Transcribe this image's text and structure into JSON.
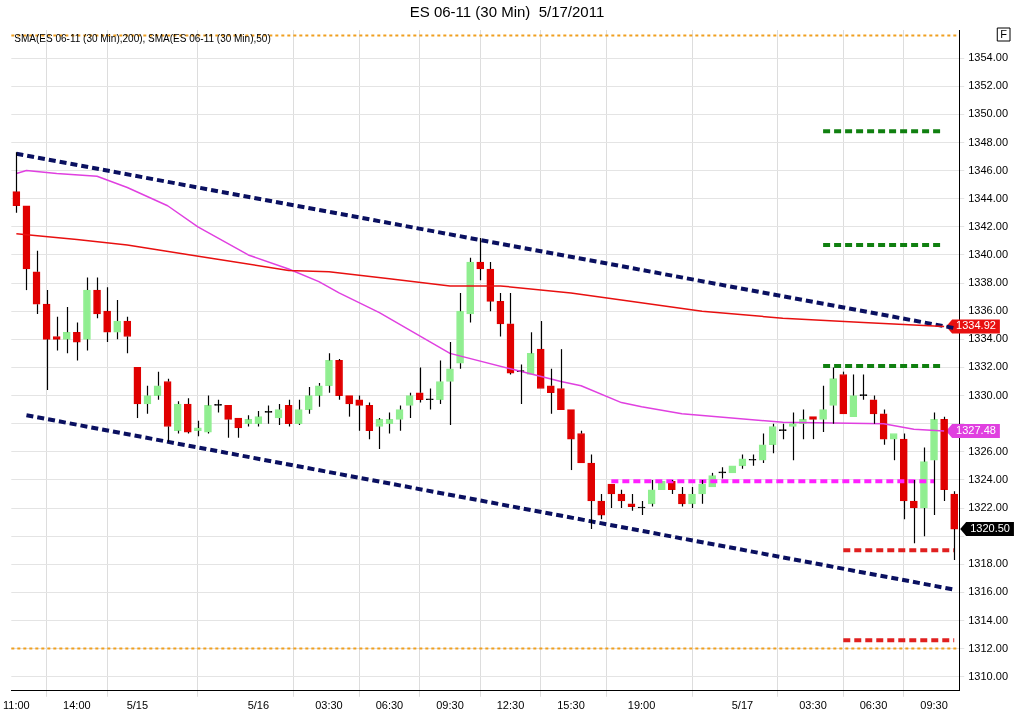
{
  "chart_data": {
    "type": "candlestick",
    "title": "ES 06-11 (30 Min)  5/17/2011",
    "subtitle": "SMA(ES 06-11 (30 Min),200), SMA(ES 06-11 (30 Min),50)",
    "categories": [
      "11:00",
      null,
      null,
      null,
      null,
      null,
      "14:00",
      null,
      null,
      null,
      null,
      null,
      "5/15",
      null,
      null,
      null,
      null,
      null,
      null,
      null,
      null,
      null,
      null,
      null,
      "5/16",
      null,
      null,
      null,
      null,
      null,
      null,
      "03:30",
      null,
      null,
      null,
      null,
      null,
      "06:30",
      null,
      null,
      null,
      null,
      null,
      "09:30",
      null,
      null,
      null,
      null,
      null,
      "12:30",
      null,
      null,
      null,
      null,
      null,
      "15:30",
      null,
      null,
      null,
      null,
      null,
      null,
      "19:00",
      null,
      null,
      null,
      null,
      null,
      null,
      null,
      null,
      null,
      "5/17",
      null,
      null,
      null,
      null,
      null,
      null,
      "03:30",
      null,
      null,
      null,
      null,
      null,
      "06:30",
      null,
      null,
      null,
      null,
      null,
      "09:30",
      null,
      null
    ],
    "ohlc": [
      [
        1344.5,
        1347.3,
        1343.0,
        1343.5
      ],
      [
        1343.5,
        1343.5,
        1337.5,
        1339.0
      ],
      [
        1338.8,
        1340.3,
        1335.8,
        1336.5
      ],
      [
        1336.5,
        1337.5,
        1330.4,
        1334.0
      ],
      [
        1334.2,
        1335.6,
        1333.2,
        1334.0
      ],
      [
        1334.0,
        1336.3,
        1333.0,
        1334.5
      ],
      [
        1334.5,
        1335.2,
        1332.5,
        1333.8
      ],
      [
        1334.0,
        1338.4,
        1333.2,
        1337.5
      ],
      [
        1337.5,
        1338.4,
        1335.5,
        1335.8
      ],
      [
        1336.0,
        1337.7,
        1333.8,
        1334.5
      ],
      [
        1334.5,
        1336.8,
        1334.0,
        1335.3
      ],
      [
        1335.3,
        1335.6,
        1333.0,
        1334.2
      ],
      [
        1332.0,
        1332.0,
        1328.4,
        1329.4
      ],
      [
        1329.4,
        1330.7,
        1328.7,
        1330.0
      ],
      [
        1330.0,
        1331.7,
        1329.7,
        1330.7
      ],
      [
        1331.0,
        1331.2,
        1326.7,
        1327.8
      ],
      [
        1327.5,
        1329.6,
        1327.3,
        1329.4
      ],
      [
        1329.4,
        1329.8,
        1327.3,
        1327.4
      ],
      [
        1327.5,
        1328.2,
        1327.1,
        1327.7
      ],
      [
        1327.4,
        1330.0,
        1327.3,
        1329.3
      ],
      [
        1329.3,
        1329.7,
        1328.8,
        1329.3
      ],
      [
        1329.3,
        1329.3,
        1327.0,
        1328.3
      ],
      [
        1328.4,
        1328.4,
        1327.0,
        1327.7
      ],
      [
        1328.0,
        1328.6,
        1327.8,
        1328.3
      ],
      [
        1328.0,
        1328.9,
        1327.8,
        1328.5
      ],
      [
        1328.8,
        1329.3,
        1328.0,
        1328.8
      ],
      [
        1328.4,
        1329.4,
        1327.9,
        1329.0
      ],
      [
        1329.3,
        1329.7,
        1327.8,
        1328.0
      ],
      [
        1328.0,
        1329.7,
        1327.9,
        1329.0
      ],
      [
        1329.0,
        1330.6,
        1328.7,
        1330.0
      ],
      [
        1330.0,
        1330.9,
        1329.2,
        1330.7
      ],
      [
        1330.7,
        1333.0,
        1330.2,
        1332.5
      ],
      [
        1332.5,
        1332.6,
        1329.7,
        1330.0
      ],
      [
        1330.0,
        1330.0,
        1328.5,
        1329.4
      ],
      [
        1329.7,
        1330.0,
        1327.5,
        1329.3
      ],
      [
        1329.3,
        1329.5,
        1326.9,
        1327.5
      ],
      [
        1327.8,
        1328.4,
        1326.2,
        1328.3
      ],
      [
        1328.0,
        1328.8,
        1327.3,
        1328.3
      ],
      [
        1328.3,
        1329.3,
        1327.5,
        1329.0
      ],
      [
        1329.3,
        1330.2,
        1328.4,
        1330.0
      ],
      [
        1330.2,
        1332.0,
        1329.5,
        1329.7
      ],
      [
        1329.7,
        1330.5,
        1329.0,
        1329.7
      ],
      [
        1329.7,
        1332.5,
        1329.4,
        1331.0
      ],
      [
        1331.0,
        1333.8,
        1327.9,
        1331.9
      ],
      [
        1332.3,
        1337.3,
        1331.9,
        1336.0
      ],
      [
        1335.8,
        1339.8,
        1335.2,
        1339.5
      ],
      [
        1339.5,
        1341.2,
        1338.2,
        1339.0
      ],
      [
        1339.0,
        1339.5,
        1336.0,
        1336.7
      ],
      [
        1336.7,
        1337.3,
        1334.2,
        1335.1
      ],
      [
        1335.1,
        1337.3,
        1331.5,
        1331.6
      ],
      [
        1331.7,
        1332.2,
        1329.4,
        1331.7
      ],
      [
        1331.5,
        1334.5,
        1331.5,
        1333.0
      ],
      [
        1333.3,
        1335.3,
        1330.5,
        1330.5
      ],
      [
        1330.7,
        1331.9,
        1328.7,
        1330.2
      ],
      [
        1330.5,
        1333.3,
        1329.0,
        1329.0
      ],
      [
        1329.0,
        1329.0,
        1324.7,
        1326.9
      ],
      [
        1327.3,
        1327.5,
        1325.2,
        1325.2
      ],
      [
        1325.2,
        1325.8,
        1320.5,
        1322.5
      ],
      [
        1322.5,
        1323.0,
        1321.2,
        1321.5
      ],
      [
        1323.7,
        1323.7,
        1322.0,
        1323.0
      ],
      [
        1323.0,
        1323.3,
        1322.0,
        1322.5
      ],
      [
        1322.3,
        1323.0,
        1321.8,
        1322.1
      ],
      [
        1322.0,
        1322.5,
        1321.5,
        1322.0
      ],
      [
        1322.3,
        1324.0,
        1322.1,
        1323.3
      ],
      [
        1323.3,
        1323.9,
        1323.3,
        1323.9
      ],
      [
        1323.9,
        1324.0,
        1323.0,
        1323.3
      ],
      [
        1323.0,
        1323.5,
        1322.1,
        1322.3
      ],
      [
        1322.3,
        1323.5,
        1322.0,
        1323.0
      ],
      [
        1323.0,
        1324.0,
        1322.3,
        1323.7
      ],
      [
        1323.5,
        1324.5,
        1323.5,
        1324.3
      ],
      [
        1324.5,
        1324.9,
        1324.1,
        1324.5
      ],
      [
        1324.5,
        1325.0,
        1324.5,
        1325.0
      ],
      [
        1325.0,
        1325.8,
        1324.8,
        1325.5
      ],
      [
        1325.4,
        1325.8,
        1325.0,
        1325.4
      ],
      [
        1325.4,
        1327.3,
        1325.2,
        1326.5
      ],
      [
        1326.5,
        1328.0,
        1325.9,
        1327.8
      ],
      [
        1327.5,
        1328.0,
        1326.9,
        1327.5
      ],
      [
        1327.8,
        1328.8,
        1325.4,
        1328.0
      ],
      [
        1328.0,
        1329.0,
        1326.9,
        1328.3
      ],
      [
        1328.5,
        1328.5,
        1326.9,
        1328.3
      ],
      [
        1328.3,
        1330.7,
        1327.4,
        1329.0
      ],
      [
        1329.3,
        1332.0,
        1328.0,
        1331.2
      ],
      [
        1331.5,
        1331.7,
        1328.7,
        1328.7
      ],
      [
        1328.5,
        1331.5,
        1328.5,
        1330.0
      ],
      [
        1330.0,
        1331.5,
        1329.7,
        1330.0
      ],
      [
        1329.7,
        1330.0,
        1328.0,
        1328.7
      ],
      [
        1328.7,
        1329.0,
        1326.5,
        1326.9
      ],
      [
        1326.9,
        1327.3,
        1325.4,
        1327.3
      ],
      [
        1326.9,
        1327.3,
        1321.2,
        1322.5
      ],
      [
        1322.5,
        1324.0,
        1319.5,
        1322.0
      ],
      [
        1322.0,
        1326.3,
        1320.0,
        1325.3
      ],
      [
        1325.4,
        1328.8,
        1321.5,
        1328.3
      ],
      [
        1328.3,
        1328.5,
        1322.5,
        1323.3
      ],
      [
        1323.0,
        1323.2,
        1318.3,
        1320.5
      ]
    ],
    "colors": [
      "#e00000",
      "#e00000",
      "#e00000",
      "#e00000",
      "#e00000",
      "#90ee90",
      "#e00000",
      "#90ee90",
      "#e00000",
      "#e00000",
      "#90ee90",
      "#e00000",
      "#e00000",
      "#90ee90",
      "#90ee90",
      "#e00000",
      "#90ee90",
      "#e00000",
      "#90ee90",
      "#90ee90",
      "#000000",
      "#e00000",
      "#e00000",
      "#90ee90",
      "#90ee90",
      "#000000",
      "#90ee90",
      "#e00000",
      "#90ee90",
      "#90ee90",
      "#90ee90",
      "#90ee90",
      "#e00000",
      "#e00000",
      "#e00000",
      "#e00000",
      "#90ee90",
      "#90ee90",
      "#90ee90",
      "#90ee90",
      "#e00000",
      "#000000",
      "#90ee90",
      "#90ee90",
      "#90ee90",
      "#90ee90",
      "#e00000",
      "#e00000",
      "#e00000",
      "#e00000",
      "#000000",
      "#90ee90",
      "#e00000",
      "#e00000",
      "#e00000",
      "#e00000",
      "#e00000",
      "#e00000",
      "#e00000",
      "#e00000",
      "#e00000",
      "#e00000",
      "#000000",
      "#90ee90",
      "#90ee90",
      "#e00000",
      "#e00000",
      "#90ee90",
      "#90ee90",
      "#90ee90",
      "#000000",
      "#90ee90",
      "#90ee90",
      "#000000",
      "#90ee90",
      "#90ee90",
      "#000000",
      "#90ee90",
      "#90ee90",
      "#e00000",
      "#90ee90",
      "#90ee90",
      "#e00000",
      "#90ee90",
      "#000000",
      "#e00000",
      "#e00000",
      "#90ee90",
      "#e00000",
      "#e00000",
      "#90ee90",
      "#90ee90",
      "#e00000",
      "#e00000"
    ],
    "value_labels": [
      null,
      null,
      null,
      null,
      null,
      null,
      null,
      null,
      null,
      null,
      null,
      null,
      null,
      null,
      null,
      null,
      null,
      null,
      null,
      null,
      null,
      null,
      null,
      null,
      null,
      null,
      null,
      null,
      null,
      null,
      null,
      null,
      null,
      null,
      null,
      null,
      null,
      null,
      null,
      null,
      null,
      null,
      null,
      null,
      null,
      null,
      null,
      null,
      null,
      null,
      null,
      null,
      null,
      null,
      null,
      null,
      null,
      null,
      null,
      null,
      null,
      null,
      null,
      null,
      null,
      null,
      null,
      null,
      null,
      null,
      null,
      null,
      null,
      null,
      null,
      null,
      null,
      null,
      null,
      null,
      null,
      null,
      null,
      null,
      null,
      null,
      null,
      null,
      null,
      null,
      null,
      null,
      null,
      "1320.50"
    ],
    "series": [
      {
        "type": "line",
        "color": "#e81010",
        "line_style": "solid",
        "values": [
          1341.5,
          null,
          null,
          null,
          null,
          null,
          1341.1,
          null,
          null,
          null,
          null,
          1340.7,
          null,
          null,
          null,
          null,
          null,
          null,
          null,
          1339.8,
          null,
          null,
          null,
          null,
          null,
          null,
          null,
          1338.9,
          null,
          null,
          null,
          1338.8,
          null,
          null,
          null,
          null,
          null,
          1338.3,
          null,
          null,
          null,
          null,
          null,
          1337.8,
          null,
          null,
          null,
          null,
          1337.8,
          null,
          null,
          null,
          null,
          null,
          null,
          1337.3,
          null,
          null,
          null,
          null,
          1336.8,
          null,
          null,
          null,
          null,
          null,
          null,
          null,
          1336.0,
          null,
          null,
          null,
          null,
          null,
          null,
          null,
          1335.5,
          null,
          null,
          null,
          null,
          null,
          null,
          null,
          1335.2,
          null,
          null,
          null,
          null,
          null,
          null,
          null,
          1334.92,
          null
        ],
        "value_labels": [
          null,
          null,
          null,
          null,
          null,
          null,
          null,
          null,
          null,
          null,
          null,
          null,
          null,
          null,
          null,
          null,
          null,
          null,
          null,
          null,
          null,
          null,
          null,
          null,
          null,
          null,
          null,
          null,
          null,
          null,
          null,
          null,
          null,
          null,
          null,
          null,
          null,
          null,
          null,
          null,
          null,
          null,
          null,
          null,
          null,
          null,
          null,
          null,
          null,
          null,
          null,
          null,
          null,
          null,
          null,
          null,
          null,
          null,
          null,
          null,
          null,
          null,
          null,
          null,
          null,
          null,
          null,
          null,
          null,
          null,
          null,
          null,
          null,
          null,
          null,
          null,
          null,
          null,
          null,
          null,
          null,
          null,
          null,
          null,
          null,
          null,
          null,
          null,
          null,
          null,
          null,
          null,
          "1334.92",
          null
        ]
      },
      {
        "type": "line",
        "color": "#e040e0",
        "line_style": "solid",
        "values": [
          1345.8,
          1346.0,
          null,
          null,
          1345.8,
          null,
          null,
          null,
          1345.6,
          null,
          null,
          1344.8,
          null,
          null,
          null,
          1343.5,
          null,
          null,
          1342.0,
          null,
          null,
          null,
          null,
          1340.0,
          null,
          null,
          null,
          1339.0,
          null,
          null,
          1338.1,
          null,
          1337.3,
          null,
          null,
          null,
          1335.9,
          null,
          null,
          null,
          null,
          null,
          null,
          1333.0,
          null,
          null,
          null,
          null,
          null,
          1331.9,
          null,
          null,
          null,
          null,
          1331.0,
          null,
          1330.7,
          null,
          null,
          null,
          1329.5,
          null,
          1329.2,
          null,
          null,
          null,
          1328.7,
          null,
          null,
          null,
          null,
          null,
          null,
          null,
          null,
          null,
          1328.1,
          null,
          null,
          null,
          null,
          null,
          null,
          null,
          null,
          null,
          1328.0,
          null,
          null,
          1327.6,
          null,
          null,
          1327.48,
          null
        ],
        "value_labels": [
          null,
          null,
          null,
          null,
          null,
          null,
          null,
          null,
          null,
          null,
          null,
          null,
          null,
          null,
          null,
          null,
          null,
          null,
          null,
          null,
          null,
          null,
          null,
          null,
          null,
          null,
          null,
          null,
          null,
          null,
          null,
          null,
          null,
          null,
          null,
          null,
          null,
          null,
          null,
          null,
          null,
          null,
          null,
          null,
          null,
          null,
          null,
          null,
          null,
          null,
          null,
          null,
          null,
          null,
          null,
          null,
          null,
          null,
          null,
          null,
          null,
          null,
          null,
          null,
          null,
          null,
          null,
          null,
          null,
          null,
          null,
          null,
          null,
          null,
          null,
          null,
          null,
          null,
          null,
          null,
          null,
          null,
          null,
          null,
          null,
          null,
          null,
          null,
          null,
          null,
          null,
          null,
          "1327.48",
          null
        ]
      },
      {
        "type": "line",
        "color": "#0a1060",
        "line_style": "dashed",
        "values": [
          1347.2,
          null,
          null,
          null,
          null,
          null,
          null,
          null,
          null,
          null,
          null,
          null,
          null,
          null,
          null,
          null,
          null,
          null,
          null,
          null,
          null,
          null,
          null,
          null,
          null,
          null,
          null,
          null,
          null,
          null,
          null,
          null,
          null,
          null,
          null,
          null,
          null,
          null,
          null,
          null,
          null,
          null,
          null,
          null,
          null,
          null,
          null,
          null,
          null,
          null,
          null,
          null,
          null,
          null,
          null,
          null,
          null,
          null,
          null,
          null,
          null,
          null,
          null,
          null,
          null,
          null,
          null,
          null,
          null,
          null,
          null,
          null,
          null,
          null,
          null,
          null,
          null,
          null,
          null,
          null,
          null,
          null,
          null,
          null,
          null,
          null,
          null,
          null,
          null,
          null,
          null,
          null,
          null,
          1334.8
        ]
      },
      {
        "type": "line",
        "color": "#0a1060",
        "line_style": "dashed",
        "values": [
          null,
          1328.6,
          null,
          null,
          null,
          null,
          null,
          null,
          null,
          null,
          null,
          null,
          null,
          null,
          null,
          null,
          null,
          null,
          null,
          null,
          null,
          null,
          null,
          null,
          null,
          null,
          null,
          null,
          null,
          null,
          null,
          null,
          null,
          null,
          null,
          null,
          null,
          null,
          null,
          null,
          null,
          null,
          null,
          null,
          null,
          null,
          null,
          null,
          null,
          null,
          null,
          null,
          null,
          null,
          null,
          null,
          null,
          null,
          null,
          null,
          null,
          null,
          null,
          null,
          null,
          null,
          null,
          null,
          null,
          null,
          null,
          null,
          null,
          null,
          null,
          null,
          null,
          null,
          null,
          null,
          null,
          null,
          null,
          null,
          null,
          null,
          null,
          null,
          null,
          null,
          null,
          null,
          null,
          1316.2
        ]
      },
      {
        "type": "line",
        "color": "#108010",
        "line_style": "dashed",
        "values": [
          null,
          null,
          null,
          null,
          null,
          null,
          null,
          null,
          null,
          null,
          null,
          null,
          null,
          null,
          null,
          null,
          null,
          null,
          null,
          null,
          null,
          null,
          null,
          null,
          null,
          null,
          null,
          null,
          null,
          null,
          null,
          null,
          null,
          null,
          null,
          null,
          null,
          null,
          null,
          null,
          null,
          null,
          null,
          null,
          null,
          null,
          null,
          null,
          null,
          null,
          null,
          null,
          null,
          null,
          null,
          null,
          null,
          null,
          null,
          null,
          null,
          null,
          null,
          null,
          null,
          null,
          null,
          null,
          null,
          null,
          null,
          null,
          null,
          null,
          null,
          null,
          null,
          null,
          null,
          null,
          1348.8,
          null,
          null,
          null,
          null,
          null,
          null,
          null,
          null,
          null,
          null,
          null,
          1348.8,
          null
        ]
      },
      {
        "type": "line",
        "color": "#108010",
        "line_style": "dashed",
        "values": [
          null,
          null,
          null,
          null,
          null,
          null,
          null,
          null,
          null,
          null,
          null,
          null,
          null,
          null,
          null,
          null,
          null,
          null,
          null,
          null,
          null,
          null,
          null,
          null,
          null,
          null,
          null,
          null,
          null,
          null,
          null,
          null,
          null,
          null,
          null,
          null,
          null,
          null,
          null,
          null,
          null,
          null,
          null,
          null,
          null,
          null,
          null,
          null,
          null,
          null,
          null,
          null,
          null,
          null,
          null,
          null,
          null,
          null,
          null,
          null,
          null,
          null,
          null,
          null,
          null,
          null,
          null,
          null,
          null,
          null,
          null,
          null,
          null,
          null,
          null,
          null,
          null,
          null,
          null,
          null,
          1340.7,
          null,
          null,
          null,
          null,
          null,
          null,
          null,
          null,
          null,
          null,
          null,
          1340.7,
          null
        ]
      },
      {
        "type": "line",
        "color": "#108010",
        "line_style": "dashed",
        "values": [
          null,
          null,
          null,
          null,
          null,
          null,
          null,
          null,
          null,
          null,
          null,
          null,
          null,
          null,
          null,
          null,
          null,
          null,
          null,
          null,
          null,
          null,
          null,
          null,
          null,
          null,
          null,
          null,
          null,
          null,
          null,
          null,
          null,
          null,
          null,
          null,
          null,
          null,
          null,
          null,
          null,
          null,
          null,
          null,
          null,
          null,
          null,
          null,
          null,
          null,
          null,
          null,
          null,
          null,
          null,
          null,
          null,
          null,
          null,
          null,
          null,
          null,
          null,
          null,
          null,
          null,
          null,
          null,
          null,
          null,
          null,
          null,
          null,
          null,
          null,
          null,
          null,
          null,
          null,
          null,
          1332.1,
          null,
          null,
          null,
          null,
          null,
          null,
          null,
          null,
          null,
          null,
          null,
          1332.1,
          null
        ]
      },
      {
        "type": "line",
        "color": "#ff20ff",
        "line_style": "dashed",
        "values": [
          null,
          null,
          null,
          null,
          null,
          null,
          null,
          null,
          null,
          null,
          null,
          null,
          null,
          null,
          null,
          null,
          null,
          null,
          null,
          null,
          null,
          null,
          null,
          null,
          null,
          null,
          null,
          null,
          null,
          null,
          null,
          null,
          null,
          null,
          null,
          null,
          null,
          null,
          null,
          null,
          null,
          null,
          null,
          null,
          null,
          null,
          null,
          null,
          null,
          null,
          null,
          null,
          null,
          null,
          null,
          null,
          null,
          null,
          null,
          1323.9,
          null,
          null,
          null,
          null,
          null,
          null,
          null,
          null,
          null,
          null,
          null,
          null,
          null,
          null,
          null,
          null,
          null,
          null,
          null,
          null,
          null,
          null,
          null,
          null,
          null,
          null,
          null,
          null,
          null,
          null,
          null,
          1323.9,
          null,
          null
        ]
      },
      {
        "type": "line",
        "color": "#e02020",
        "line_style": "dashed",
        "values": [
          null,
          null,
          null,
          null,
          null,
          null,
          null,
          null,
          null,
          null,
          null,
          null,
          null,
          null,
          null,
          null,
          null,
          null,
          null,
          null,
          null,
          null,
          null,
          null,
          null,
          null,
          null,
          null,
          null,
          null,
          null,
          null,
          null,
          null,
          null,
          null,
          null,
          null,
          null,
          null,
          null,
          null,
          null,
          null,
          null,
          null,
          null,
          null,
          null,
          null,
          null,
          null,
          null,
          null,
          null,
          null,
          null,
          null,
          null,
          null,
          null,
          null,
          null,
          null,
          null,
          null,
          null,
          null,
          null,
          null,
          null,
          null,
          null,
          null,
          null,
          null,
          null,
          null,
          null,
          null,
          null,
          null,
          1319.0,
          null,
          null,
          null,
          null,
          null,
          null,
          null,
          null,
          null,
          null,
          1319.0
        ]
      },
      {
        "type": "line",
        "color": "#e02020",
        "line_style": "dashed",
        "values": [
          null,
          null,
          null,
          null,
          null,
          null,
          null,
          null,
          null,
          null,
          null,
          null,
          null,
          null,
          null,
          null,
          null,
          null,
          null,
          null,
          null,
          null,
          null,
          null,
          null,
          null,
          null,
          null,
          null,
          null,
          null,
          null,
          null,
          null,
          null,
          null,
          null,
          null,
          null,
          null,
          null,
          null,
          null,
          null,
          null,
          null,
          null,
          null,
          null,
          null,
          null,
          null,
          null,
          null,
          null,
          null,
          null,
          null,
          null,
          null,
          null,
          null,
          null,
          null,
          null,
          null,
          null,
          null,
          null,
          null,
          null,
          null,
          null,
          null,
          null,
          null,
          null,
          null,
          null,
          null,
          null,
          null,
          1312.6,
          null,
          null,
          null,
          null,
          null,
          null,
          null,
          null,
          null,
          null,
          1312.6
        ]
      }
    ],
    "ref_lines": [
      {
        "axis": "y",
        "value": 1355.6,
        "color": "#f0a020",
        "line_style": "dotted"
      },
      {
        "axis": "y",
        "value": 1312.0,
        "color": "#f0a020",
        "line_style": "dotted"
      }
    ],
    "ylim": [
      1309,
      1356
    ],
    "yticks": [
      {
        "value": 1310,
        "label": "1310.00"
      },
      {
        "value": 1312,
        "label": "1312.00"
      },
      {
        "value": 1314,
        "label": "1314.00"
      },
      {
        "value": 1316,
        "label": "1316.00"
      },
      {
        "value": 1318,
        "label": "1318.00"
      },
      {
        "value": 1320,
        "label": null
      },
      {
        "value": 1322,
        "label": "1322.00"
      },
      {
        "value": 1324,
        "label": "1324.00"
      },
      {
        "value": 1326,
        "label": "1326.00"
      },
      {
        "value": 1328,
        "label": null
      },
      {
        "value": 1330,
        "label": "1330.00"
      },
      {
        "value": 1332,
        "label": "1332.00"
      },
      {
        "value": 1334,
        "label": "1334.00"
      },
      {
        "value": 1336,
        "label": "1336.00"
      },
      {
        "value": 1338,
        "label": "1338.00"
      },
      {
        "value": 1340,
        "label": "1340.00"
      },
      {
        "value": 1342,
        "label": "1342.00"
      },
      {
        "value": 1344,
        "label": "1344.00"
      },
      {
        "value": 1346,
        "label": "1346.00"
      },
      {
        "value": 1348,
        "label": "1348.00"
      },
      {
        "value": 1350,
        "label": "1350.00"
      },
      {
        "value": 1352,
        "label": "1352.00"
      },
      {
        "value": 1354,
        "label": "1354.00"
      }
    ],
    "annotations": [
      "F"
    ],
    "grid": true,
    "legend": false,
    "marker": "none"
  }
}
